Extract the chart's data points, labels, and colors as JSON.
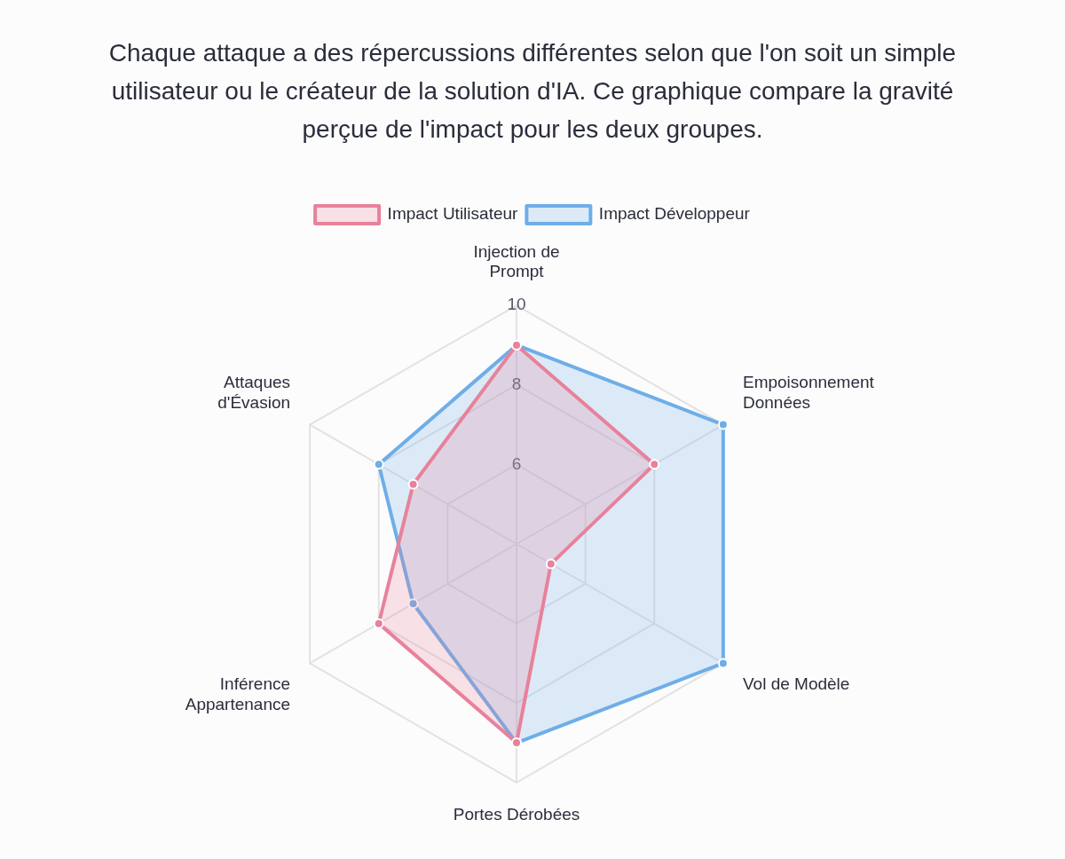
{
  "chart_data": {
    "type": "radar",
    "title": "Chaque attaque a des répercussions différentes selon que l'on soit un simple utilisateur ou le créateur de la solution d'IA. Ce graphique compare la gravité perçue de l'impact pour les deux groupes.",
    "categories": [
      "Injection de Prompt",
      "Empoisonnement Données",
      "Vol de Modèle",
      "Portes Dérobées",
      "Inférence Appartenance",
      "Attaques d'Évasion"
    ],
    "series": [
      {
        "name": "Impact Utilisateur",
        "color": "#e8819b",
        "values": [
          9,
          8,
          5,
          9,
          8,
          7
        ]
      },
      {
        "name": "Impact Développeur",
        "color": "#6eaee8",
        "values": [
          9,
          10,
          10,
          9,
          7,
          8
        ]
      }
    ],
    "ylim": [
      4,
      10
    ],
    "yticks": [
      6,
      8,
      10
    ],
    "grid": true,
    "legend": "top",
    "marker": "circle"
  }
}
